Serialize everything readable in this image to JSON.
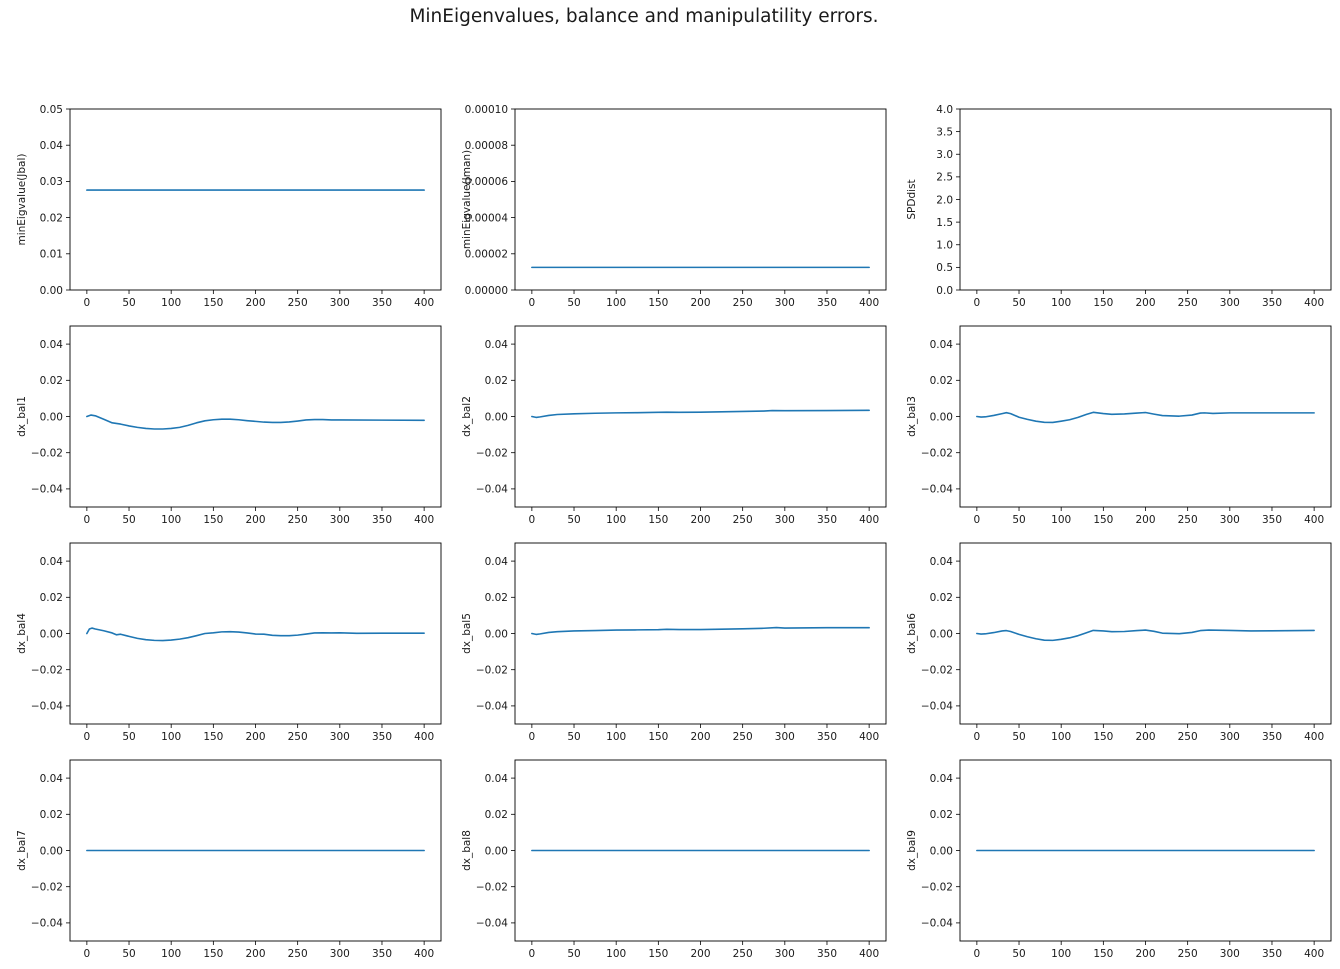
{
  "figure_title": "MinEigenvalues, balance and manipulatility errors.",
  "chart_data": [
    {
      "type": "line",
      "ylabel": "minEigvalue(Jbal)",
      "xlim": [
        -20,
        420
      ],
      "ylim": [
        0,
        0.05
      ],
      "xticks": [
        "0",
        "50",
        "100",
        "150",
        "200",
        "250",
        "300",
        "350",
        "400"
      ],
      "yticks": [
        "0.00",
        "0.01",
        "0.02",
        "0.03",
        "0.04",
        "0.05"
      ],
      "x": [
        0,
        400
      ],
      "y": [
        0.0276,
        0.0276
      ]
    },
    {
      "type": "line",
      "ylabel": "minEigvalue(Jman)",
      "xlim": [
        -20,
        420
      ],
      "ylim": [
        0,
        0.0001
      ],
      "xticks": [
        "0",
        "50",
        "100",
        "150",
        "200",
        "250",
        "300",
        "350",
        "400"
      ],
      "yticks": [
        "0.00000",
        "0.00002",
        "0.00004",
        "0.00006",
        "0.00008",
        "0.00010"
      ],
      "x": [
        0,
        400
      ],
      "y": [
        1.25e-05,
        1.25e-05
      ]
    },
    {
      "type": "line",
      "ylabel": "SPDdist",
      "xlim": [
        -20,
        420
      ],
      "ylim": [
        0,
        4
      ],
      "xticks": [
        "0",
        "50",
        "100",
        "150",
        "200",
        "250",
        "300",
        "350",
        "400"
      ],
      "yticks": [
        "0.0",
        "0.5",
        "1.0",
        "1.5",
        "2.0",
        "2.5",
        "3.0",
        "3.5",
        "4.0"
      ],
      "x": [],
      "y": []
    },
    {
      "type": "line",
      "ylabel": "dx_bal1",
      "xlim": [
        -20,
        420
      ],
      "ylim": [
        -0.05,
        0.05
      ],
      "xticks": [
        "0",
        "50",
        "100",
        "150",
        "200",
        "250",
        "300",
        "350",
        "400"
      ],
      "yticks": [
        "−0.04",
        "−0.02",
        "0.00",
        "0.02",
        "0.04"
      ],
      "x": [
        0,
        5,
        10,
        20,
        30,
        40,
        50,
        60,
        70,
        80,
        90,
        100,
        110,
        120,
        130,
        140,
        150,
        160,
        170,
        180,
        190,
        200,
        210,
        220,
        230,
        240,
        250,
        260,
        270,
        280,
        290,
        300,
        350,
        400
      ],
      "y": [
        0.0,
        0.0008,
        0.0004,
        -0.0015,
        -0.0035,
        -0.0042,
        -0.0052,
        -0.006,
        -0.0066,
        -0.0069,
        -0.0069,
        -0.0066,
        -0.006,
        -0.0049,
        -0.0035,
        -0.0024,
        -0.0018,
        -0.0015,
        -0.0015,
        -0.0018,
        -0.0023,
        -0.0027,
        -0.0031,
        -0.0033,
        -0.0033,
        -0.003,
        -0.0025,
        -0.0019,
        -0.0017,
        -0.0017,
        -0.0019,
        -0.0019,
        -0.002,
        -0.0021
      ]
    },
    {
      "type": "line",
      "ylabel": "dx_bal2",
      "xlim": [
        -20,
        420
      ],
      "ylim": [
        -0.05,
        0.05
      ],
      "xticks": [
        "0",
        "50",
        "100",
        "150",
        "200",
        "250",
        "300",
        "350",
        "400"
      ],
      "yticks": [
        "−0.04",
        "−0.02",
        "0.00",
        "0.02",
        "0.04"
      ],
      "x": [
        0,
        5,
        10,
        20,
        30,
        50,
        75,
        100,
        125,
        150,
        160,
        175,
        200,
        225,
        250,
        275,
        285,
        300,
        350,
        400
      ],
      "y": [
        0.0,
        -0.0005,
        -0.0002,
        0.0006,
        0.0011,
        0.0015,
        0.0018,
        0.002,
        0.0021,
        0.0023,
        0.0024,
        0.0023,
        0.0024,
        0.0026,
        0.0028,
        0.003,
        0.0033,
        0.0032,
        0.0033,
        0.0034
      ]
    },
    {
      "type": "line",
      "ylabel": "dx_bal3",
      "xlim": [
        -20,
        420
      ],
      "ylim": [
        -0.05,
        0.05
      ],
      "xticks": [
        "0",
        "50",
        "100",
        "150",
        "200",
        "250",
        "300",
        "350",
        "400"
      ],
      "yticks": [
        "−0.04",
        "−0.02",
        "0.00",
        "0.02",
        "0.04"
      ],
      "x": [
        0,
        5,
        10,
        20,
        30,
        35,
        40,
        50,
        60,
        70,
        80,
        90,
        100,
        110,
        120,
        130,
        138,
        150,
        160,
        175,
        190,
        200,
        210,
        220,
        240,
        255,
        265,
        270,
        280,
        300,
        350,
        400
      ],
      "y": [
        0.0,
        -0.0003,
        -0.0002,
        0.0006,
        0.0016,
        0.0021,
        0.0016,
        -0.0004,
        -0.0016,
        -0.0026,
        -0.0032,
        -0.0033,
        -0.0026,
        -0.0018,
        -0.0005,
        0.0012,
        0.0023,
        0.0016,
        0.0012,
        0.0014,
        0.0019,
        0.0022,
        0.0013,
        0.0005,
        0.0002,
        0.0008,
        0.0019,
        0.002,
        0.0017,
        0.002,
        0.002,
        0.002
      ]
    },
    {
      "type": "line",
      "ylabel": "dx_bal4",
      "xlim": [
        -20,
        420
      ],
      "ylim": [
        -0.05,
        0.05
      ],
      "xticks": [
        "0",
        "50",
        "100",
        "150",
        "200",
        "250",
        "300",
        "350",
        "400"
      ],
      "yticks": [
        "−0.04",
        "−0.02",
        "0.00",
        "0.02",
        "0.04"
      ],
      "x": [
        0,
        3,
        6,
        10,
        20,
        30,
        35,
        40,
        50,
        60,
        70,
        80,
        90,
        100,
        110,
        120,
        130,
        140,
        150,
        160,
        170,
        180,
        190,
        200,
        210,
        220,
        230,
        240,
        250,
        260,
        270,
        280,
        290,
        300,
        320,
        350,
        400
      ],
      "y": [
        0.0,
        0.0025,
        0.003,
        0.0025,
        0.0015,
        0.0003,
        -0.0007,
        -0.0004,
        -0.0016,
        -0.0027,
        -0.0034,
        -0.0038,
        -0.0039,
        -0.0036,
        -0.0031,
        -0.0023,
        -0.0012,
        0.0,
        0.0004,
        0.0009,
        0.001,
        0.0008,
        0.0003,
        -0.0003,
        -0.0004,
        -0.001,
        -0.0012,
        -0.0012,
        -0.0009,
        -0.0003,
        0.0003,
        0.0004,
        0.0003,
        0.0004,
        0.0001,
        0.0002,
        0.0002
      ]
    },
    {
      "type": "line",
      "ylabel": "dx_bal5",
      "xlim": [
        -20,
        420
      ],
      "ylim": [
        -0.05,
        0.05
      ],
      "xticks": [
        "0",
        "50",
        "100",
        "150",
        "200",
        "250",
        "300",
        "350",
        "400"
      ],
      "yticks": [
        "−0.04",
        "−0.02",
        "0.00",
        "0.02",
        "0.04"
      ],
      "x": [
        0,
        5,
        10,
        20,
        30,
        50,
        75,
        100,
        125,
        150,
        160,
        175,
        200,
        225,
        250,
        275,
        290,
        300,
        350,
        400
      ],
      "y": [
        0.0,
        -0.0005,
        -0.0002,
        0.0006,
        0.001,
        0.0014,
        0.0016,
        0.0019,
        0.002,
        0.0021,
        0.0023,
        0.0022,
        0.0022,
        0.0024,
        0.0026,
        0.0029,
        0.0033,
        0.003,
        0.0032,
        0.0032
      ]
    },
    {
      "type": "line",
      "ylabel": "dx_bal6",
      "xlim": [
        -20,
        420
      ],
      "ylim": [
        -0.05,
        0.05
      ],
      "xticks": [
        "0",
        "50",
        "100",
        "150",
        "200",
        "250",
        "300",
        "350",
        "400"
      ],
      "yticks": [
        "−0.04",
        "−0.02",
        "0.00",
        "0.02",
        "0.04"
      ],
      "x": [
        0,
        5,
        10,
        20,
        30,
        35,
        40,
        50,
        60,
        70,
        80,
        90,
        100,
        110,
        120,
        130,
        138,
        150,
        160,
        175,
        190,
        200,
        210,
        220,
        240,
        255,
        265,
        275,
        300,
        325,
        350,
        400
      ],
      "y": [
        0.0,
        -0.0003,
        -0.0002,
        0.0005,
        0.0014,
        0.0016,
        0.0011,
        -0.0005,
        -0.0018,
        -0.0029,
        -0.0037,
        -0.0038,
        -0.0032,
        -0.0024,
        -0.0012,
        0.0004,
        0.0017,
        0.0014,
        0.001,
        0.0011,
        0.0016,
        0.0019,
        0.0012,
        0.0002,
        -0.0001,
        0.0006,
        0.0016,
        0.0019,
        0.0017,
        0.0014,
        0.0015,
        0.0017
      ]
    },
    {
      "type": "line",
      "ylabel": "dx_bal7",
      "xlim": [
        -20,
        420
      ],
      "ylim": [
        -0.05,
        0.05
      ],
      "xticks": [
        "0",
        "50",
        "100",
        "150",
        "200",
        "250",
        "300",
        "350",
        "400"
      ],
      "yticks": [
        "−0.04",
        "−0.02",
        "0.00",
        "0.02",
        "0.04"
      ],
      "x": [
        0,
        400
      ],
      "y": [
        0.0,
        0.0
      ]
    },
    {
      "type": "line",
      "ylabel": "dx_bal8",
      "xlim": [
        -20,
        420
      ],
      "ylim": [
        -0.05,
        0.05
      ],
      "xticks": [
        "0",
        "50",
        "100",
        "150",
        "200",
        "250",
        "300",
        "350",
        "400"
      ],
      "yticks": [
        "−0.04",
        "−0.02",
        "0.00",
        "0.02",
        "0.04"
      ],
      "x": [
        0,
        400
      ],
      "y": [
        0.0,
        0.0
      ]
    },
    {
      "type": "line",
      "ylabel": "dx_bal9",
      "xlim": [
        -20,
        420
      ],
      "ylim": [
        -0.05,
        0.05
      ],
      "xticks": [
        "0",
        "50",
        "100",
        "150",
        "200",
        "250",
        "300",
        "350",
        "400"
      ],
      "yticks": [
        "−0.04",
        "−0.02",
        "0.00",
        "0.02",
        "0.04"
      ],
      "x": [
        0,
        400
      ],
      "y": [
        0.0,
        0.0
      ]
    }
  ],
  "series_color": "#1f77b4"
}
